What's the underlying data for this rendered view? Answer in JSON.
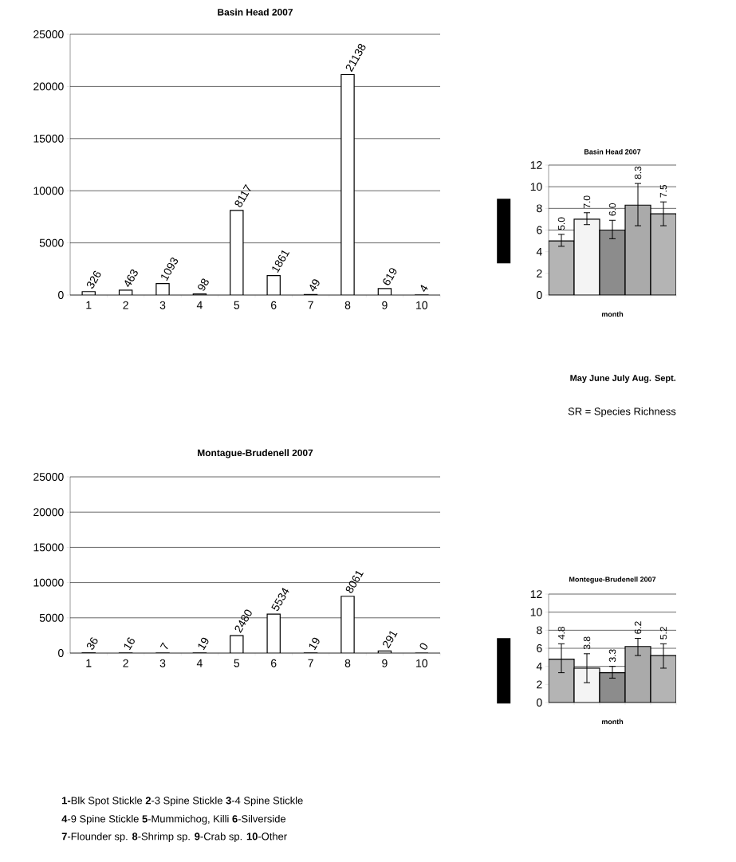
{
  "chart_data": [
    {
      "type": "bar",
      "title": "Basin Head 2007",
      "categories": [
        "1",
        "2",
        "3",
        "4",
        "5",
        "6",
        "7",
        "8",
        "9",
        "10"
      ],
      "values": [
        326,
        463,
        1093,
        98,
        8117,
        1861,
        49,
        21138,
        619,
        4
      ],
      "color": "#ffffff",
      "ylim": [
        0,
        25000
      ],
      "yticks": [
        0,
        5000,
        10000,
        15000,
        20000,
        25000
      ],
      "grid": "y",
      "data_labels": true
    },
    {
      "type": "bar",
      "title": "Basin Head 2007",
      "xlabel": "month",
      "categories": [
        null,
        null,
        null,
        null,
        null
      ],
      "values": [
        5.0,
        7.0,
        6.0,
        8.3,
        7.5
      ],
      "value_labels": [
        "5.0",
        "7.0",
        "6.0",
        "8.3",
        "7.5"
      ],
      "errors": [
        [
          4.5,
          5.6
        ],
        [
          6.5,
          7.6
        ],
        [
          5.2,
          6.9
        ],
        [
          6.4,
          10.3
        ],
        [
          6.4,
          8.6
        ]
      ],
      "colors": [
        "#b4b4b4",
        "#f4f4f4",
        "#8c8c8c",
        "#aaaaaa",
        "#b4b4b4"
      ],
      "ylim": [
        0,
        12
      ],
      "yticks": [
        0,
        2,
        4,
        6,
        8,
        10,
        12
      ],
      "grid": "y",
      "tick_labels": "y",
      "annotations": [
        "May June July Aug. Sept.",
        "SR = Species Richness"
      ]
    },
    {
      "type": "bar",
      "title": "Montague-Brudenell 2007",
      "categories": [
        "1",
        "2",
        "3",
        "4",
        "5",
        "6",
        "7",
        "8",
        "9",
        "10"
      ],
      "values": [
        36,
        16,
        7,
        19,
        2480,
        5534,
        19,
        8061,
        291,
        0
      ],
      "color": "#ffffff",
      "ylim": [
        0,
        25000
      ],
      "yticks": [
        0,
        5000,
        10000,
        15000,
        20000,
        25000
      ],
      "grid": "y",
      "data_labels": true,
      "annotations": [
        "**1-**Blk Spot Stickle **2**-3 Spine Stickle **3**-4 Spine Stickle",
        "**4**-9 Spine Stickle **5**-Mummichog, Killi **6**-Silverside",
        "**7**-Flounder sp. **8**-Shrimp sp. **9**-Crab sp. **10**-Other"
      ]
    },
    {
      "type": "bar",
      "title": "Montegue-Brudenell 2007",
      "xlabel": "month",
      "categories": [
        null,
        null,
        null,
        null,
        null
      ],
      "values": [
        4.8,
        3.8,
        3.3,
        6.2,
        5.2
      ],
      "value_labels": [
        "4.8",
        "3.8",
        "3.3",
        "6.2",
        "5.2"
      ],
      "errors": [
        [
          3.3,
          6.5
        ],
        [
          2.2,
          5.4
        ],
        [
          2.7,
          4.0
        ],
        [
          5.2,
          7.1
        ],
        [
          3.8,
          6.5
        ]
      ],
      "colors": [
        "#b4b4b4",
        "#f4f4f4",
        "#8c8c8c",
        "#aaaaaa",
        "#b4b4b4"
      ],
      "ylim": [
        0,
        12
      ],
      "yticks": [
        0,
        2,
        4,
        6,
        8,
        10,
        12
      ],
      "grid": "y",
      "tick_labels": "y"
    }
  ]
}
